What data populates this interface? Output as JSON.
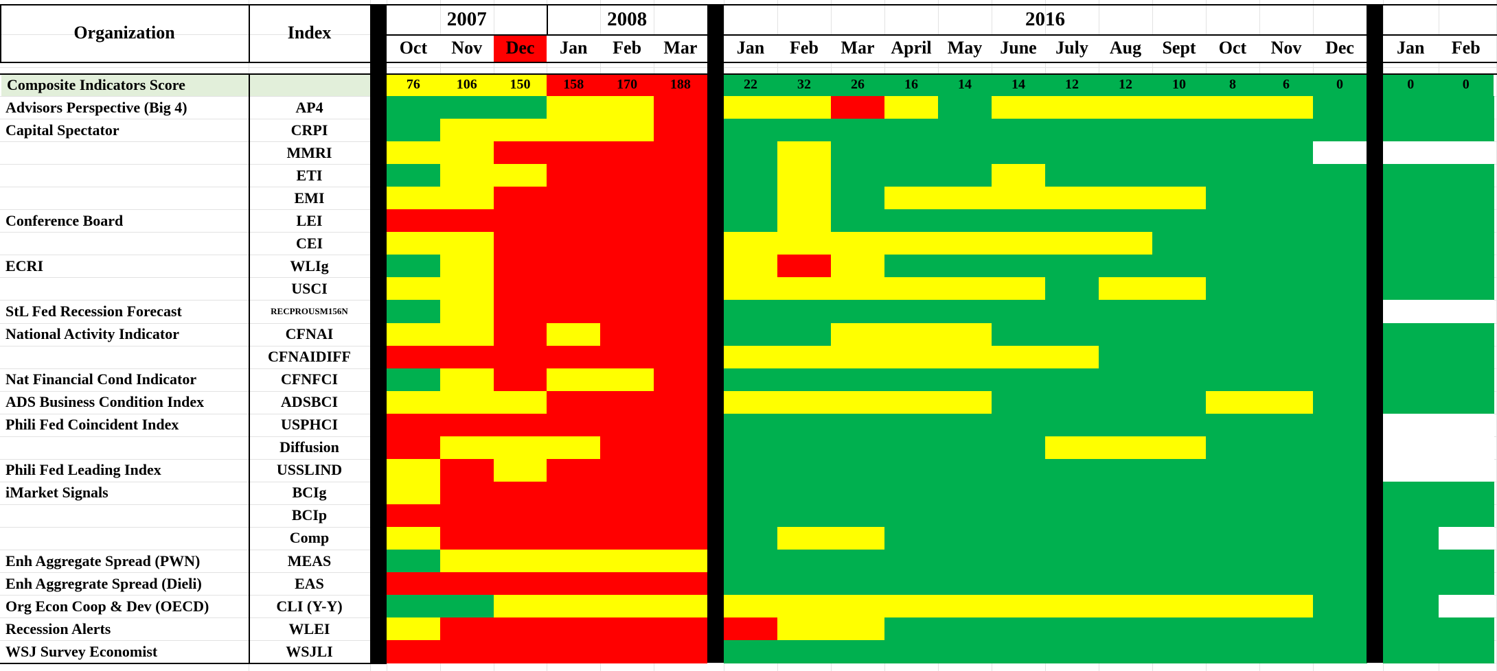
{
  "colors": {
    "G": "#00b04f",
    "Y": "#ffff00",
    "R": "#ff0000",
    "W": "#ffffff",
    "composite_row_bg": "#e2efda"
  },
  "header": {
    "organization_label": "Organization",
    "index_label": "Index",
    "year_groups": [
      {
        "label": "2007",
        "cols": [
          "Oct",
          "Nov",
          "Dec"
        ]
      },
      {
        "label": "2008",
        "cols": [
          "Jan",
          "Feb",
          "Mar"
        ]
      },
      {
        "label": "2016",
        "cols": [
          "Jan",
          "Feb",
          "Mar",
          "April",
          "May",
          "June",
          "July",
          "Aug",
          "Sept",
          "Oct",
          "Nov",
          "Dec"
        ]
      },
      {
        "label": "",
        "cols": [
          "Jan",
          "Feb"
        ]
      }
    ],
    "month_header_colors": [
      "W",
      "W",
      "R",
      "W",
      "W",
      "W",
      "W",
      "W",
      "W",
      "W",
      "W",
      "W",
      "W",
      "W",
      "W",
      "W",
      "W",
      "W",
      "W",
      "W"
    ]
  },
  "composite": {
    "label": "Composite Indicators Score",
    "scores": [
      "76",
      "106",
      "150",
      "158",
      "170",
      "188",
      "22",
      "32",
      "26",
      "16",
      "14",
      "14",
      "12",
      "12",
      "10",
      "8",
      "6",
      "0",
      "0",
      "0"
    ],
    "colors": [
      "Y",
      "Y",
      "Y",
      "R",
      "R",
      "R",
      "G",
      "G",
      "G",
      "G",
      "G",
      "G",
      "G",
      "G",
      "G",
      "G",
      "G",
      "G",
      "G",
      "G"
    ]
  },
  "rows": [
    {
      "org": "Advisors Perspective (Big 4)",
      "index": "AP4",
      "cells": "GGGYYRYYRYGYYYYYYGGG"
    },
    {
      "org": "Capital Spectator",
      "index": "CRPI",
      "cells": "GYYYYRGGGGGGGGGGGGGG"
    },
    {
      "org": "",
      "index": "MMRI",
      "cells": "YYRRRRGYGGGGGGGGGWWW"
    },
    {
      "org": "",
      "index": "ETI",
      "cells": "GYYRRRGYGGGYGGGGGGGG"
    },
    {
      "org": "",
      "index": "EMI",
      "cells": "YYRRRRGYGYYYYYYGGGGG"
    },
    {
      "org": "Conference Board",
      "index": "LEI",
      "cells": "RRRRRRGYGGGGGGGGGGGG"
    },
    {
      "org": "",
      "index": "CEI",
      "cells": "YYRRRRYYYYYYYYGGGGGG"
    },
    {
      "org": "ECRI",
      "index": "WLIg",
      "cells": "GYRRRRYRYGGGGGGGGGGG"
    },
    {
      "org": "",
      "index": "USCI",
      "cells": "YYRRRRYYYYYYGYYGGGGG"
    },
    {
      "org": "StL Fed Recession Forecast",
      "index": "RECPROUSM156N",
      "cells": "GYRRRRGGGGGGGGGGGGWW"
    },
    {
      "org": "National Activity Indicator",
      "index": "CFNAI",
      "cells": "YYRYRRGGYYYGGGGGGGGG"
    },
    {
      "org": "",
      "index": "CFNAIDIFF",
      "cells": "RRRRRRYYYYYYYGGGGGGG"
    },
    {
      "org": "Nat Financial Cond Indicator",
      "index": "CFNFCI",
      "cells": "GYRYYRGGGGGGGGGGGGGG"
    },
    {
      "org": "ADS Business Condition Index",
      "index": "ADSBCI",
      "cells": "YYYRRRYYYYYGGGGYYGGG"
    },
    {
      "org": "Phili Fed Coincident Index",
      "index": "USPHCI",
      "cells": "RRRRRRGGGGGGGGGGGGWW"
    },
    {
      "org": "",
      "index": "Diffusion",
      "cells": "RYYYRRGGGGGGYYYGGGWW"
    },
    {
      "org": "Phili Fed Leading Index",
      "index": "USSLIND",
      "cells": "YRYRRRGGGGGGGGGGGGWW"
    },
    {
      "org": "iMarket Signals",
      "index": "BCIg",
      "cells": "YRRRRRGGGGGGGGGGGGGG"
    },
    {
      "org": "",
      "index": "BCIp",
      "cells": "RRRRRRGGGGGGGGGGGGGG"
    },
    {
      "org": "",
      "index": "Comp",
      "cells": "YRRRRRGYYGGGGGGGGGGW"
    },
    {
      "org": "Enh Aggregate Spread (PWN)",
      "index": "MEAS",
      "cells": "GYYYYYGGGGGGGGGGGGGG"
    },
    {
      "org": "Enh Aggregrate Spread (Dieli)",
      "index": "EAS",
      "cells": "RRRRRRGGGGGGGGGGGGGG"
    },
    {
      "org": "Org Econ Coop & Dev (OECD)",
      "index": "CLI (Y-Y)",
      "cells": "GGYYYYYYYYYYYYYYYGGW"
    },
    {
      "org": "Recession Alerts",
      "index": "WLEI",
      "cells": "YRRRRRRYYGGGGGGGGGGG"
    },
    {
      "org": "WSJ Survey Economist",
      "index": "WSJLI",
      "cells": "RRRRRRGGGGGGGGGGGGGG"
    }
  ]
}
